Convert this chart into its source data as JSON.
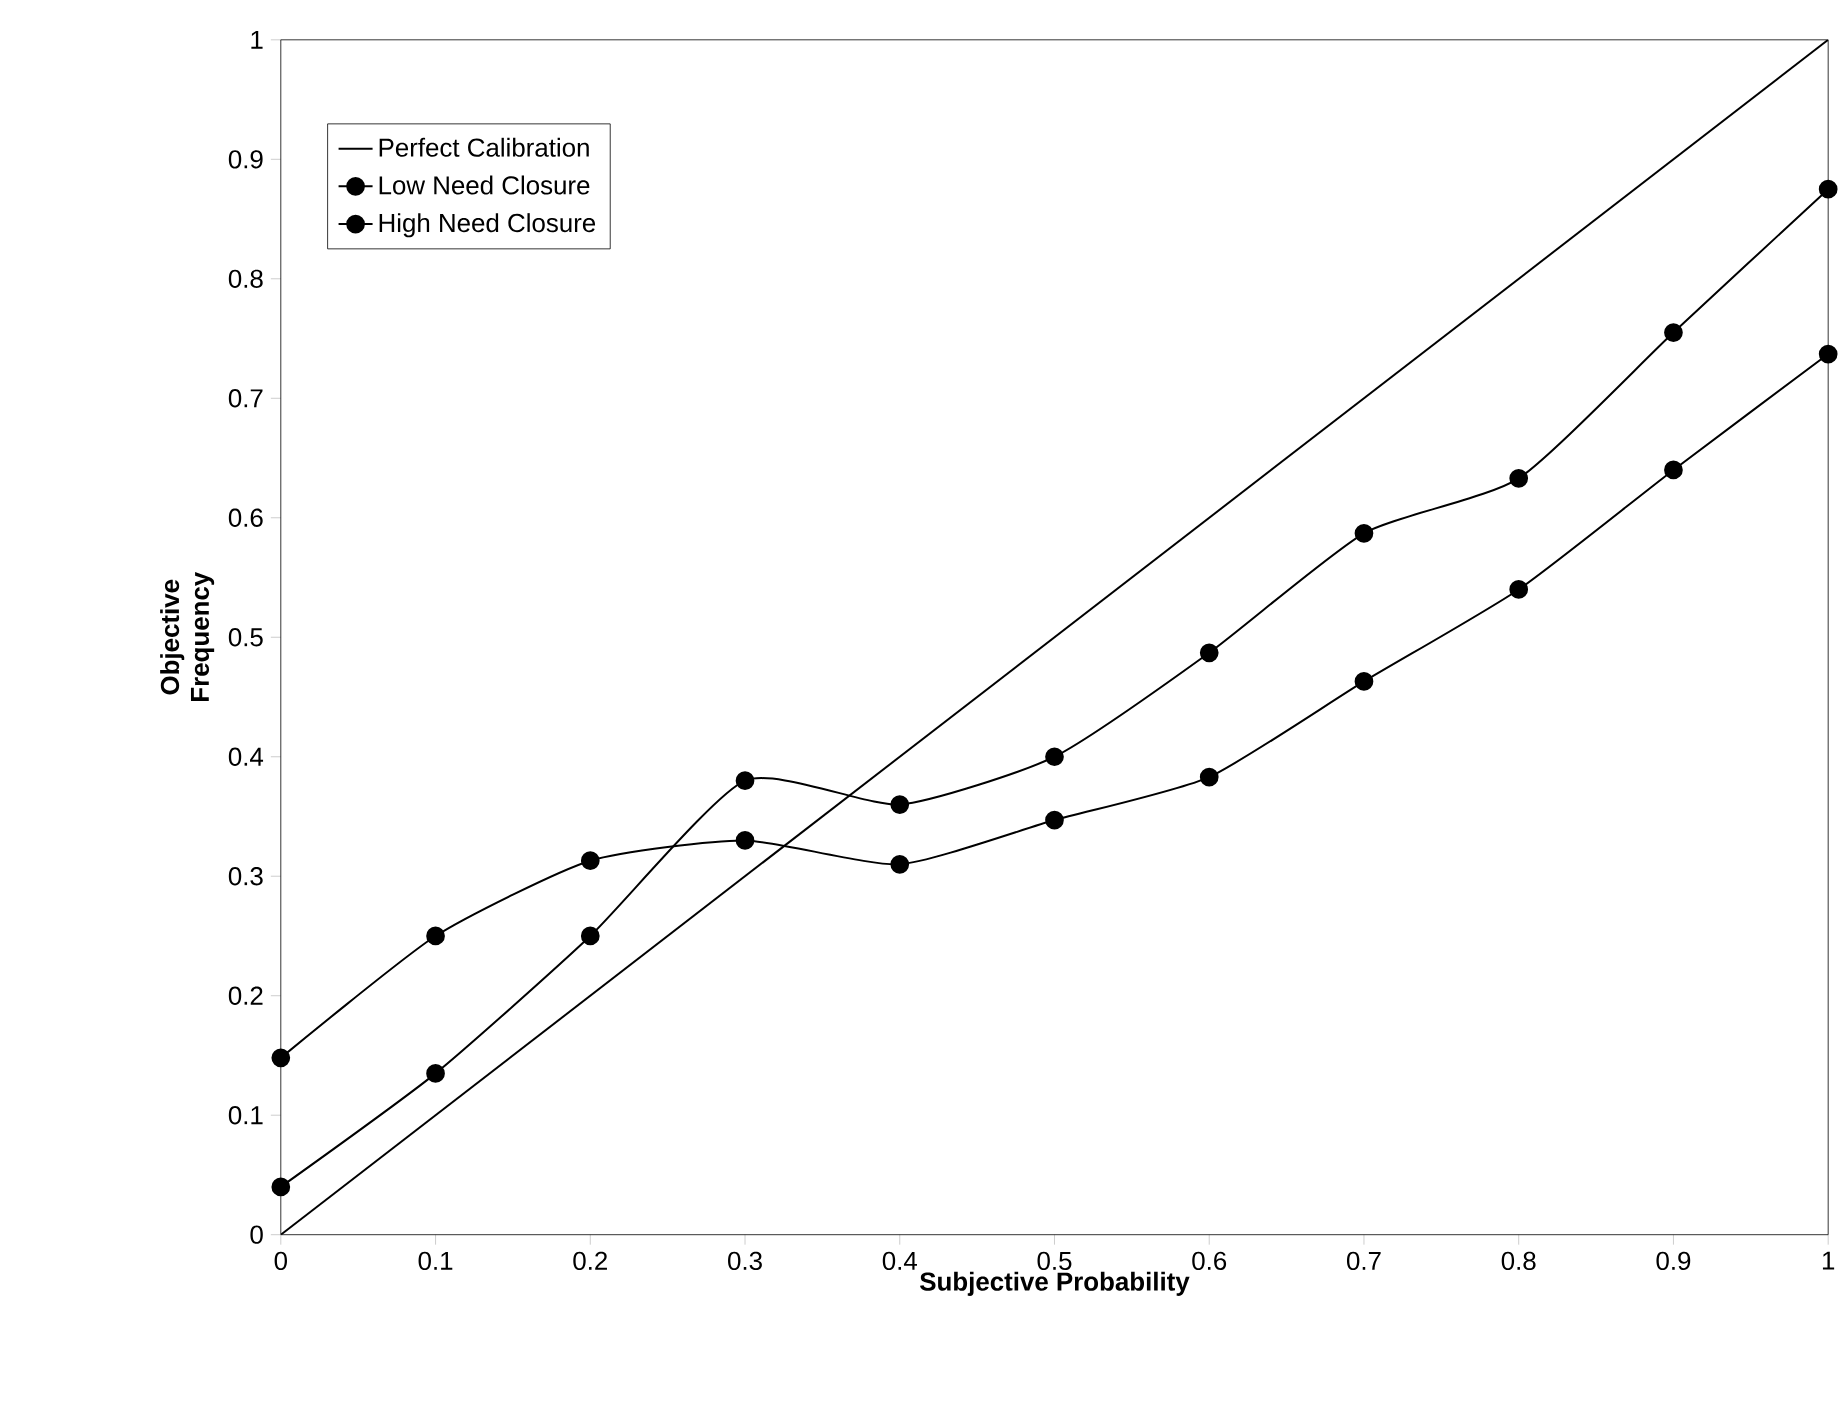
{
  "chart_data": {
    "type": "line",
    "xlabel": "Subjective Probability",
    "ylabel": "Objective Frequency",
    "x": [
      0,
      0.1,
      0.2,
      0.3,
      0.4,
      0.5,
      0.6,
      0.7,
      0.8,
      0.9,
      1
    ],
    "series": [
      {
        "name": "Perfect Calibration",
        "color": "#000000",
        "marker": "none",
        "x": [
          0,
          1
        ],
        "values": [
          0,
          1
        ]
      },
      {
        "name": "Low  Need Closure",
        "color": "#000000",
        "marker": "circle",
        "values": [
          0.04,
          0.135,
          0.25,
          0.38,
          0.36,
          0.4,
          0.487,
          0.587,
          0.633,
          0.755,
          0.875
        ]
      },
      {
        "name": "High Need Closure",
        "color": "#000000",
        "marker": "circle",
        "values": [
          0.148,
          0.25,
          0.313,
          0.33,
          0.31,
          0.347,
          0.383,
          0.463,
          0.54,
          0.64,
          0.737
        ]
      }
    ],
    "xlim": [
      0,
      1
    ],
    "ylim": [
      0,
      1
    ],
    "xticks": [
      0,
      0.1,
      0.2,
      0.3,
      0.4,
      0.5,
      0.6,
      0.7,
      0.8,
      0.9,
      1
    ],
    "yticks": [
      0,
      0.1,
      0.2,
      0.3,
      0.4,
      0.5,
      0.6,
      0.7,
      0.8,
      0.9,
      1
    ],
    "grid": false,
    "legend": "top left",
    "line_style": "solid"
  }
}
